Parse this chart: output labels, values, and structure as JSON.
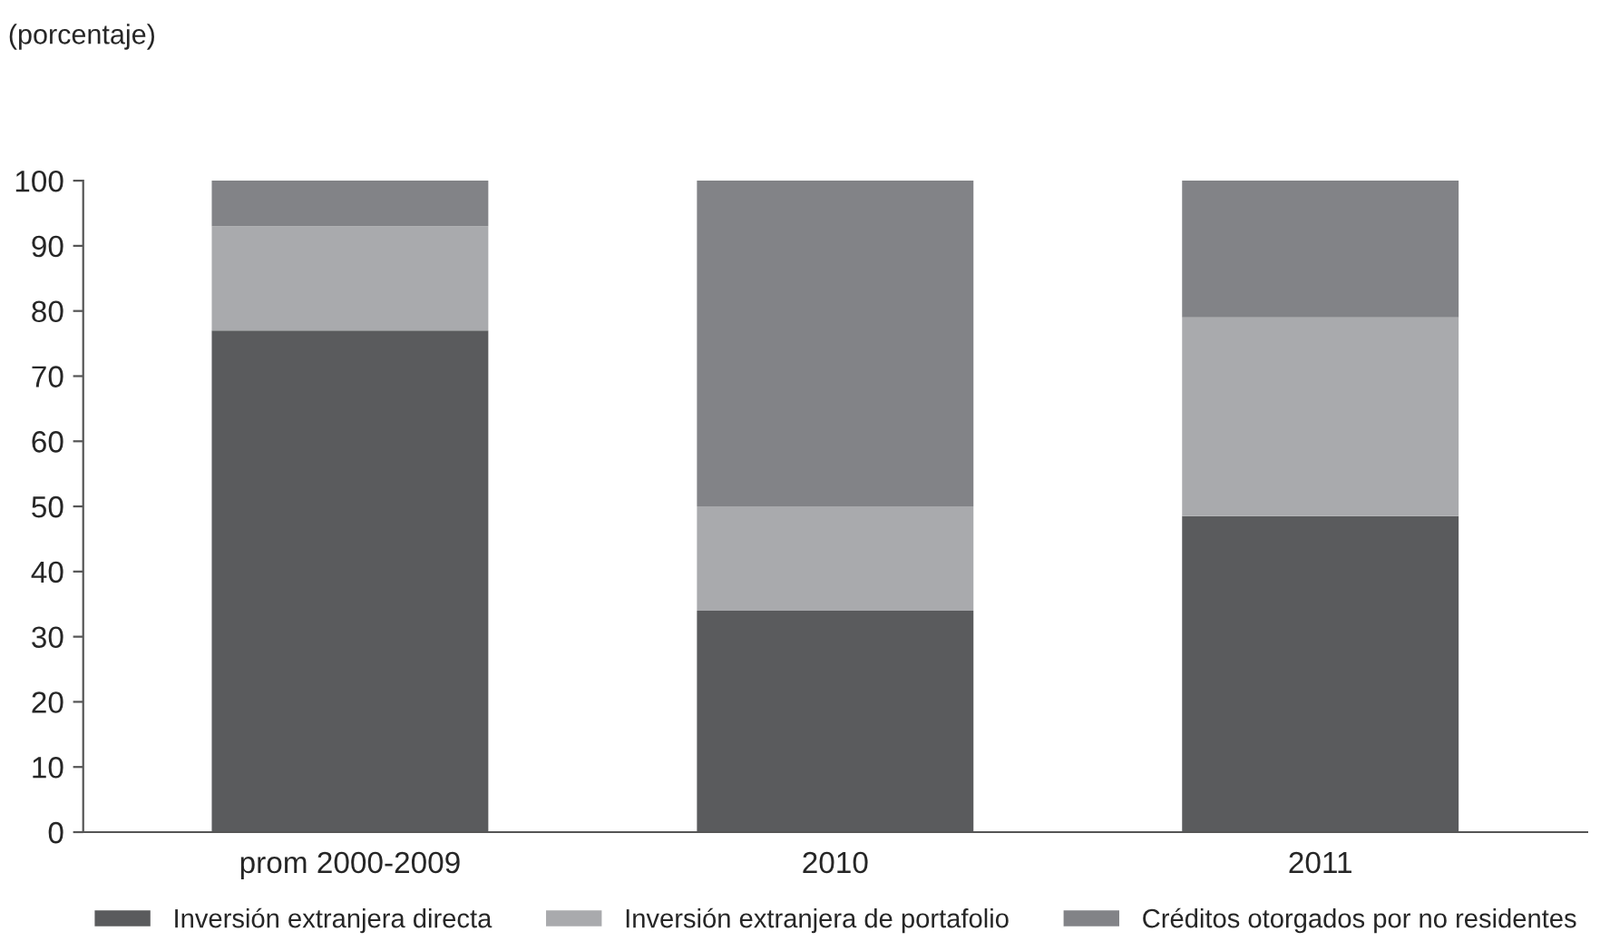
{
  "chart_data": {
    "type": "bar",
    "stacked": true,
    "ylabel": "(porcentaje)",
    "categories": [
      "prom 2000-2009",
      "2010",
      "2011"
    ],
    "series": [
      {
        "name": "Inversión extranjera directa",
        "color": "#5a5b5d",
        "values": [
          77,
          34,
          48.5
        ]
      },
      {
        "name": "Inversión extranjera de portafolio",
        "color": "#a9aaad",
        "values": [
          16,
          16,
          30.5
        ]
      },
      {
        "name": "Créditos otorgados por no residentes",
        "color": "#828387",
        "values": [
          7,
          50,
          21
        ]
      }
    ],
    "ylim": [
      0,
      100
    ],
    "yticks": [
      0,
      10,
      20,
      30,
      40,
      50,
      60,
      70,
      80,
      90,
      100
    ],
    "grid": false,
    "legend": "bottom"
  }
}
